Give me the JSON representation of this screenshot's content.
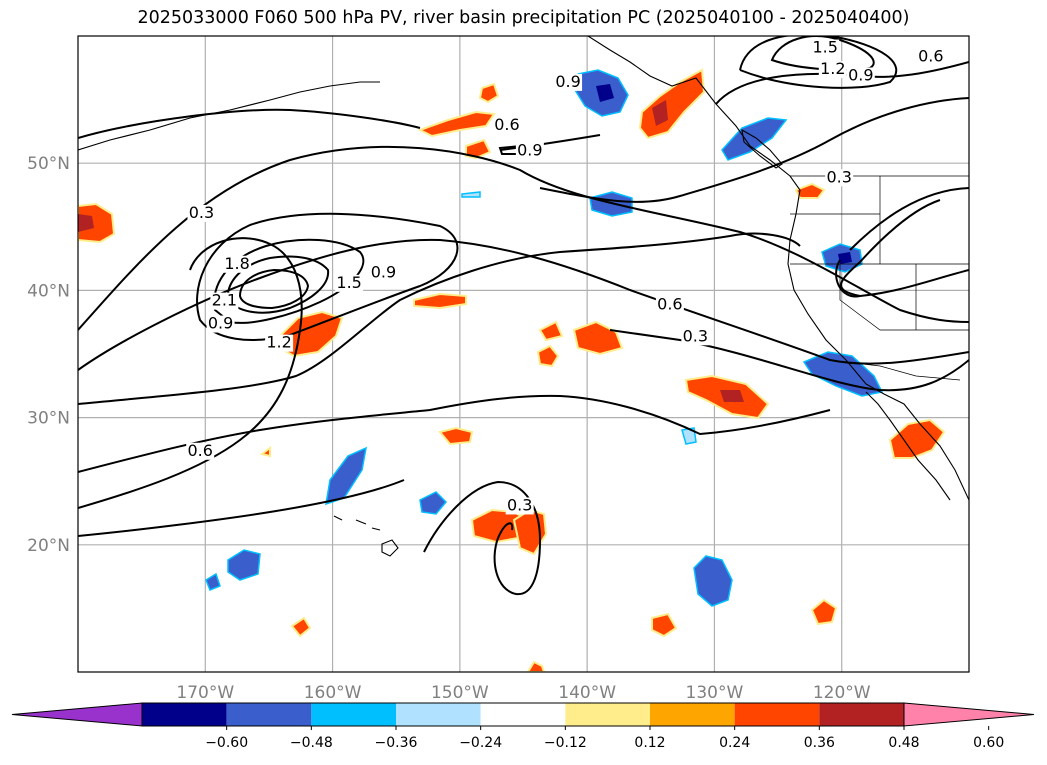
{
  "title": "2025033000 F060 500 hPa PV, river basin precipitation PC (2025040100 - 2025040400)",
  "map": {
    "lon_range": [
      -180,
      -110
    ],
    "lat_range": [
      10,
      60
    ],
    "x_ticks": [
      {
        "lon": -170,
        "label": "170°W"
      },
      {
        "lon": -160,
        "label": "160°W"
      },
      {
        "lon": -150,
        "label": "150°W"
      },
      {
        "lon": -140,
        "label": "140°W"
      },
      {
        "lon": -130,
        "label": "130°W"
      },
      {
        "lon": -120,
        "label": "120°W"
      }
    ],
    "y_ticks": [
      {
        "lat": 50,
        "label": "50°N"
      },
      {
        "lat": 40,
        "label": "40°N"
      },
      {
        "lat": 30,
        "label": "30°N"
      },
      {
        "lat": 20,
        "label": "20°N"
      }
    ],
    "contour_labels": [
      {
        "text": "0.3",
        "lon": -170.3,
        "lat": 45.7
      },
      {
        "text": "0.6",
        "lon": -146.3,
        "lat": 52.6
      },
      {
        "text": "0.9",
        "lon": -144.5,
        "lat": 50.6
      },
      {
        "text": "0.9",
        "lon": -168.8,
        "lat": 37.0
      },
      {
        "text": "1.8",
        "lon": -167.5,
        "lat": 41.7
      },
      {
        "text": "2.1",
        "lon": -168.5,
        "lat": 38.8
      },
      {
        "text": "1.5",
        "lon": -158.7,
        "lat": 40.2
      },
      {
        "text": "0.9",
        "lon": -156.0,
        "lat": 41.0
      },
      {
        "text": "1.2",
        "lon": -164.2,
        "lat": 35.5
      },
      {
        "text": "0.6",
        "lon": -170.4,
        "lat": 27.0
      },
      {
        "text": "0.6",
        "lon": -133.5,
        "lat": 38.5
      },
      {
        "text": "0.3",
        "lon": -131.5,
        "lat": 36.0
      },
      {
        "text": "1.5",
        "lon": -121.3,
        "lat": 58.7
      },
      {
        "text": "1.2",
        "lon": -120.7,
        "lat": 57.0
      },
      {
        "text": "0.9",
        "lon": -118.5,
        "lat": 56.5
      },
      {
        "text": "0.6",
        "lon": -113.0,
        "lat": 58.0
      },
      {
        "text": "0.9",
        "lon": -141.5,
        "lat": 56.0
      },
      {
        "text": "0.3",
        "lon": -120.2,
        "lat": 48.5
      },
      {
        "text": "0.3",
        "lon": -145.3,
        "lat": 22.7
      }
    ]
  },
  "colorbar": {
    "colors": [
      "#9932CC",
      "#00008B",
      "#3A5FCD",
      "#00BFFF",
      "#B0E2FF",
      "#FFFFFF",
      "#FFEC8B",
      "#FFA500",
      "#FF4500",
      "#B22222",
      "#FF82AB"
    ],
    "ticks": [
      "−0.60",
      "−0.48",
      "−0.36",
      "−0.24",
      "−0.12",
      "0.12",
      "0.24",
      "0.36",
      "0.48",
      "0.60"
    ]
  }
}
